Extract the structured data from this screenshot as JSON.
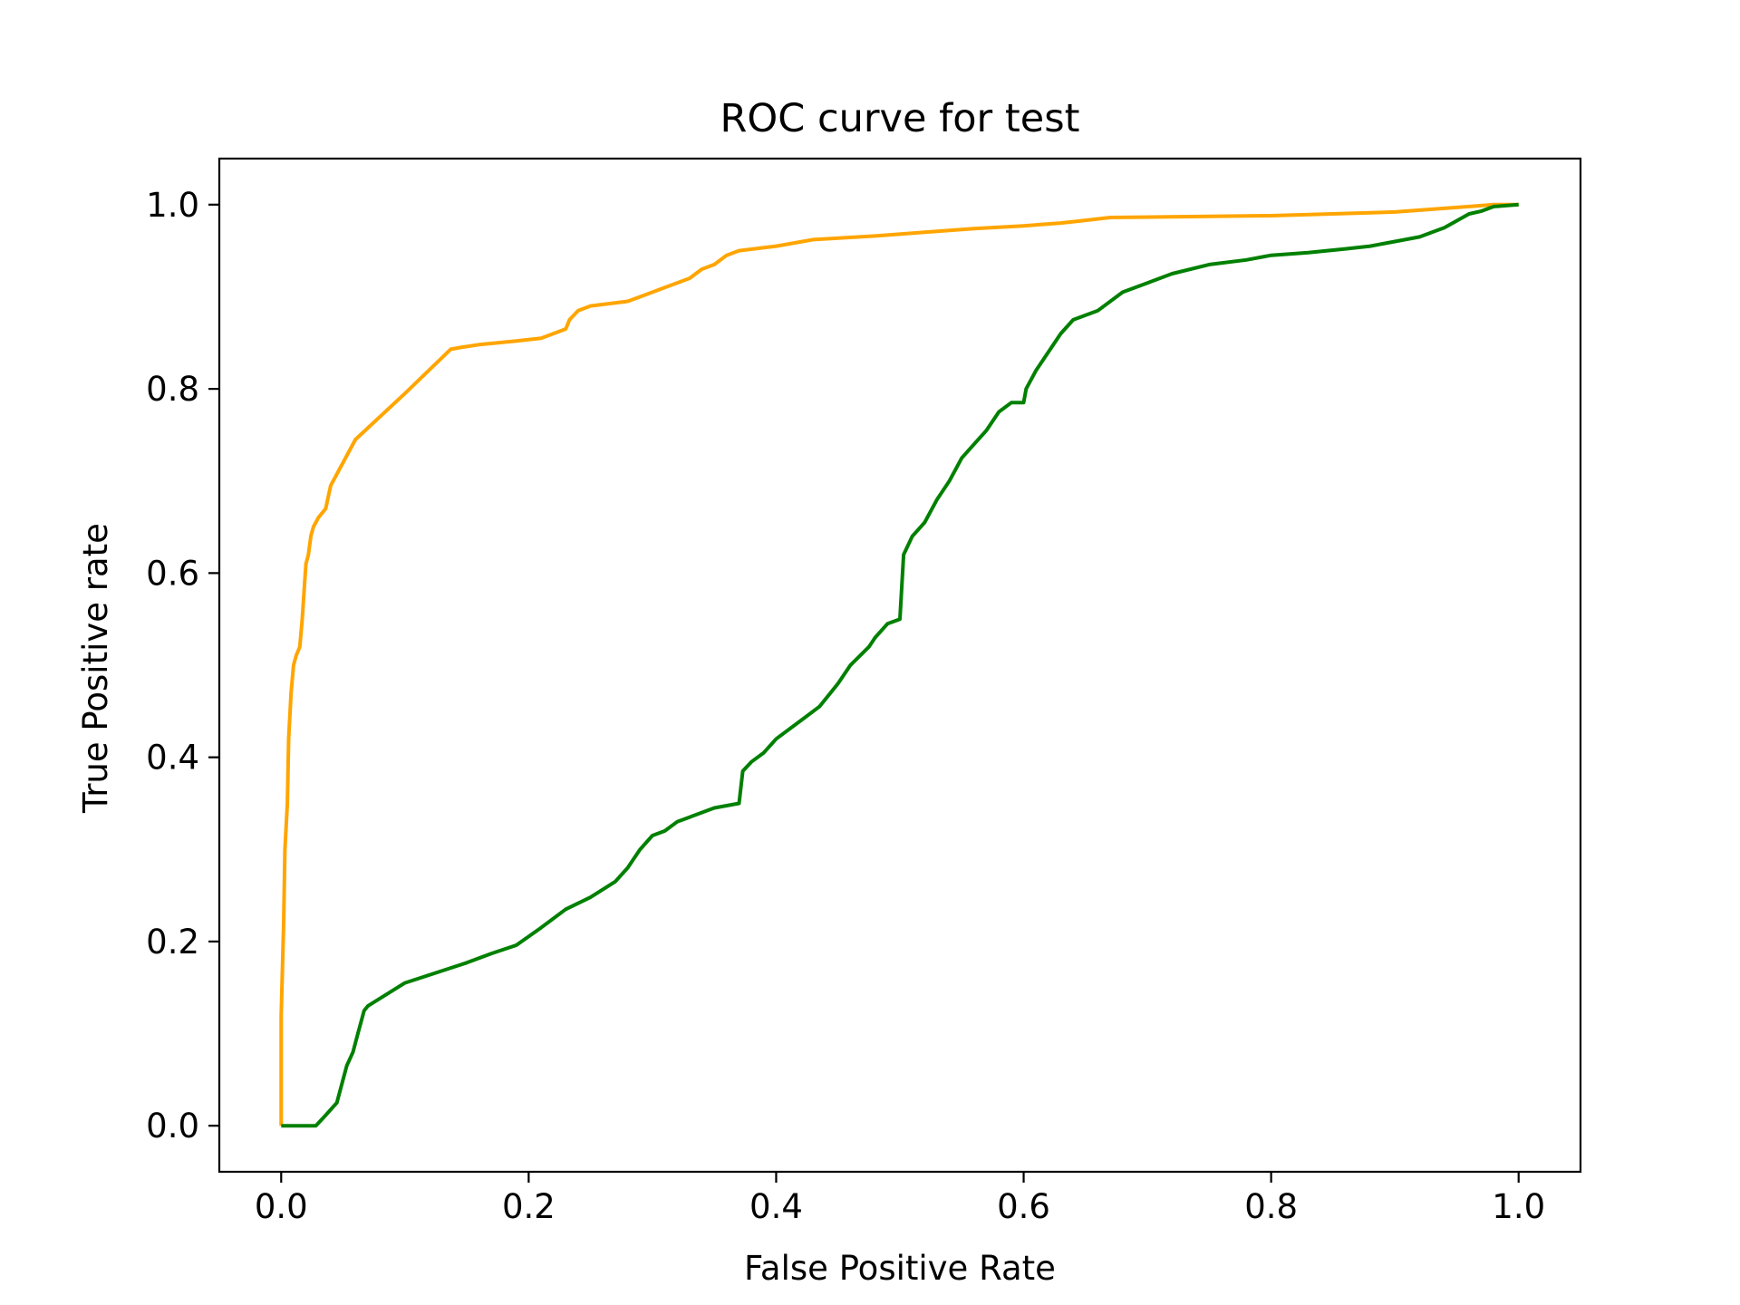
{
  "chart_data": {
    "type": "line",
    "title": "ROC curve for test",
    "xlabel": "False Positive Rate",
    "ylabel": "True Positive rate",
    "xlim": [
      -0.05,
      1.05
    ],
    "ylim": [
      -0.05,
      1.05
    ],
    "xticks": [
      0.0,
      0.2,
      0.4,
      0.6,
      0.8,
      1.0
    ],
    "yticks": [
      0.0,
      0.2,
      0.4,
      0.6,
      0.8,
      1.0
    ],
    "xtick_labels": [
      "0.0",
      "0.2",
      "0.4",
      "0.6",
      "0.8",
      "1.0"
    ],
    "ytick_labels": [
      "0.0",
      "0.2",
      "0.4",
      "0.6",
      "0.8",
      "1.0"
    ],
    "grid": false,
    "legend": false,
    "series": [
      {
        "color": "#ffa500",
        "x": [
          0.0,
          0.0,
          0.002,
          0.003,
          0.005,
          0.006,
          0.008,
          0.01,
          0.012,
          0.015,
          0.017,
          0.019,
          0.02,
          0.022,
          0.024,
          0.026,
          0.028,
          0.03,
          0.033,
          0.036,
          0.04,
          0.06,
          0.1,
          0.137,
          0.145,
          0.16,
          0.19,
          0.21,
          0.22,
          0.23,
          0.233,
          0.24,
          0.25,
          0.28,
          0.29,
          0.31,
          0.33,
          0.34,
          0.35,
          0.36,
          0.37,
          0.4,
          0.43,
          0.48,
          0.52,
          0.56,
          0.6,
          0.63,
          0.65,
          0.67,
          0.8,
          0.9,
          0.93,
          0.96,
          0.98,
          1.0
        ],
        "y": [
          0.0,
          0.12,
          0.22,
          0.3,
          0.35,
          0.42,
          0.47,
          0.5,
          0.51,
          0.52,
          0.55,
          0.59,
          0.61,
          0.62,
          0.64,
          0.65,
          0.655,
          0.66,
          0.665,
          0.67,
          0.695,
          0.745,
          0.795,
          0.843,
          0.845,
          0.848,
          0.852,
          0.855,
          0.86,
          0.865,
          0.875,
          0.885,
          0.89,
          0.895,
          0.9,
          0.91,
          0.92,
          0.93,
          0.935,
          0.945,
          0.95,
          0.955,
          0.962,
          0.966,
          0.97,
          0.974,
          0.977,
          0.98,
          0.983,
          0.986,
          0.988,
          0.992,
          0.995,
          0.998,
          1.0,
          1.0
        ]
      },
      {
        "color": "#008000",
        "x": [
          0.0,
          0.028,
          0.035,
          0.045,
          0.05,
          0.053,
          0.058,
          0.062,
          0.067,
          0.07,
          0.1,
          0.15,
          0.17,
          0.19,
          0.21,
          0.23,
          0.25,
          0.27,
          0.28,
          0.29,
          0.3,
          0.31,
          0.32,
          0.33,
          0.35,
          0.37,
          0.373,
          0.38,
          0.39,
          0.4,
          0.42,
          0.435,
          0.45,
          0.46,
          0.475,
          0.48,
          0.49,
          0.5,
          0.503,
          0.51,
          0.52,
          0.53,
          0.54,
          0.55,
          0.56,
          0.57,
          0.58,
          0.59,
          0.6,
          0.602,
          0.61,
          0.62,
          0.63,
          0.64,
          0.66,
          0.68,
          0.7,
          0.72,
          0.75,
          0.78,
          0.8,
          0.83,
          0.86,
          0.88,
          0.9,
          0.92,
          0.94,
          0.96,
          0.97,
          0.98,
          1.0
        ],
        "y": [
          0.0,
          0.0,
          0.01,
          0.025,
          0.05,
          0.065,
          0.08,
          0.1,
          0.125,
          0.13,
          0.155,
          0.177,
          0.187,
          0.196,
          0.215,
          0.235,
          0.248,
          0.265,
          0.28,
          0.3,
          0.315,
          0.32,
          0.33,
          0.335,
          0.345,
          0.35,
          0.385,
          0.395,
          0.405,
          0.42,
          0.44,
          0.455,
          0.48,
          0.5,
          0.52,
          0.53,
          0.545,
          0.55,
          0.62,
          0.64,
          0.655,
          0.68,
          0.7,
          0.725,
          0.74,
          0.755,
          0.775,
          0.785,
          0.785,
          0.8,
          0.82,
          0.84,
          0.86,
          0.875,
          0.885,
          0.905,
          0.915,
          0.925,
          0.935,
          0.94,
          0.945,
          0.948,
          0.952,
          0.955,
          0.96,
          0.965,
          0.975,
          0.99,
          0.993,
          0.998,
          1.0
        ]
      }
    ]
  }
}
